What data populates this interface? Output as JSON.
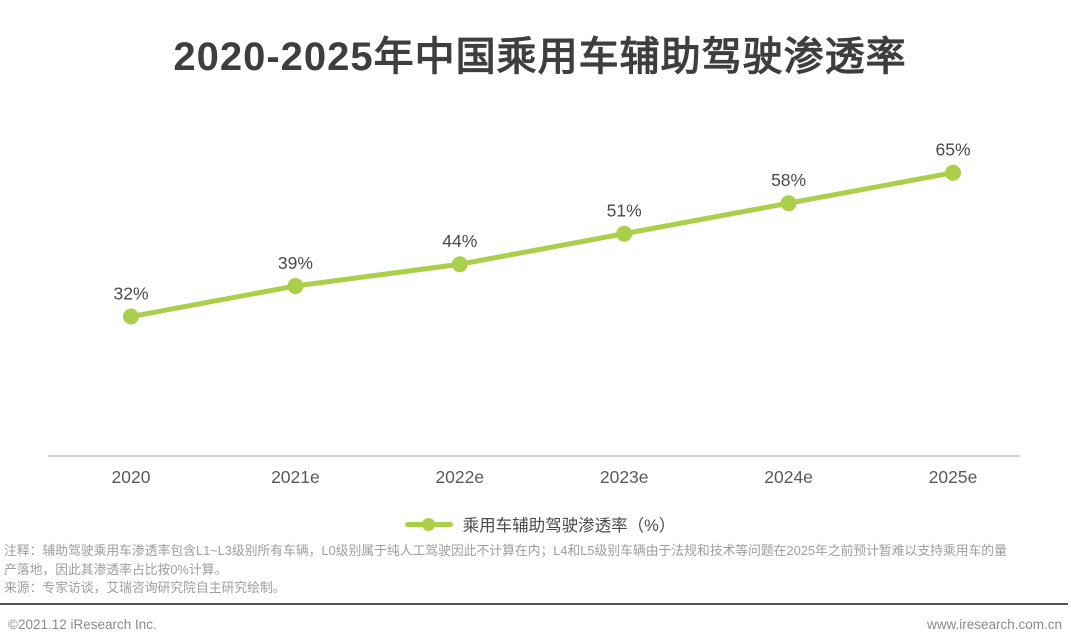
{
  "page": {
    "title": "2020-2025年中国乘用车辅助驾驶渗透率",
    "legend": {
      "label": "乘用车辅助驾驶渗透率（%）"
    },
    "notes": {
      "lines": [
        "注释：辅助驾驶乘用车渗透率包含L1~L3级别所有车辆，L0级别属于纯人工驾驶因此不计算在内；L4和L5级别车辆由于法规和技术等问题在2025年之前预计暂难以支持乘用车的量",
        "产落地，因此其渗透率占比按0%计算。",
        "来源：专家访谈，艾瑞咨询研究院自主研究绘制。"
      ]
    },
    "footer": {
      "copyright": "©2021.12 iResearch Inc.",
      "website": "www.iresearch.com.cn"
    }
  },
  "chart_data": {
    "type": "line",
    "title": "2020-2025年中国乘用车辅助驾驶渗透率",
    "categories": [
      "2020",
      "2021e",
      "2022e",
      "2023e",
      "2024e",
      "2025e"
    ],
    "values": [
      32,
      39,
      44,
      51,
      58,
      65
    ],
    "unit": "%",
    "xlabel": "",
    "ylabel": "乘用车辅助驾驶渗透率（%）",
    "ylim": [
      0,
      80
    ],
    "grid": false,
    "legend_position": "bottom",
    "colors": {
      "line": "#aacf4a",
      "marker": "#aacf4a",
      "data_label": "#4a4a4a",
      "tick_label": "#595959",
      "axis": "#c9c9c9"
    }
  }
}
